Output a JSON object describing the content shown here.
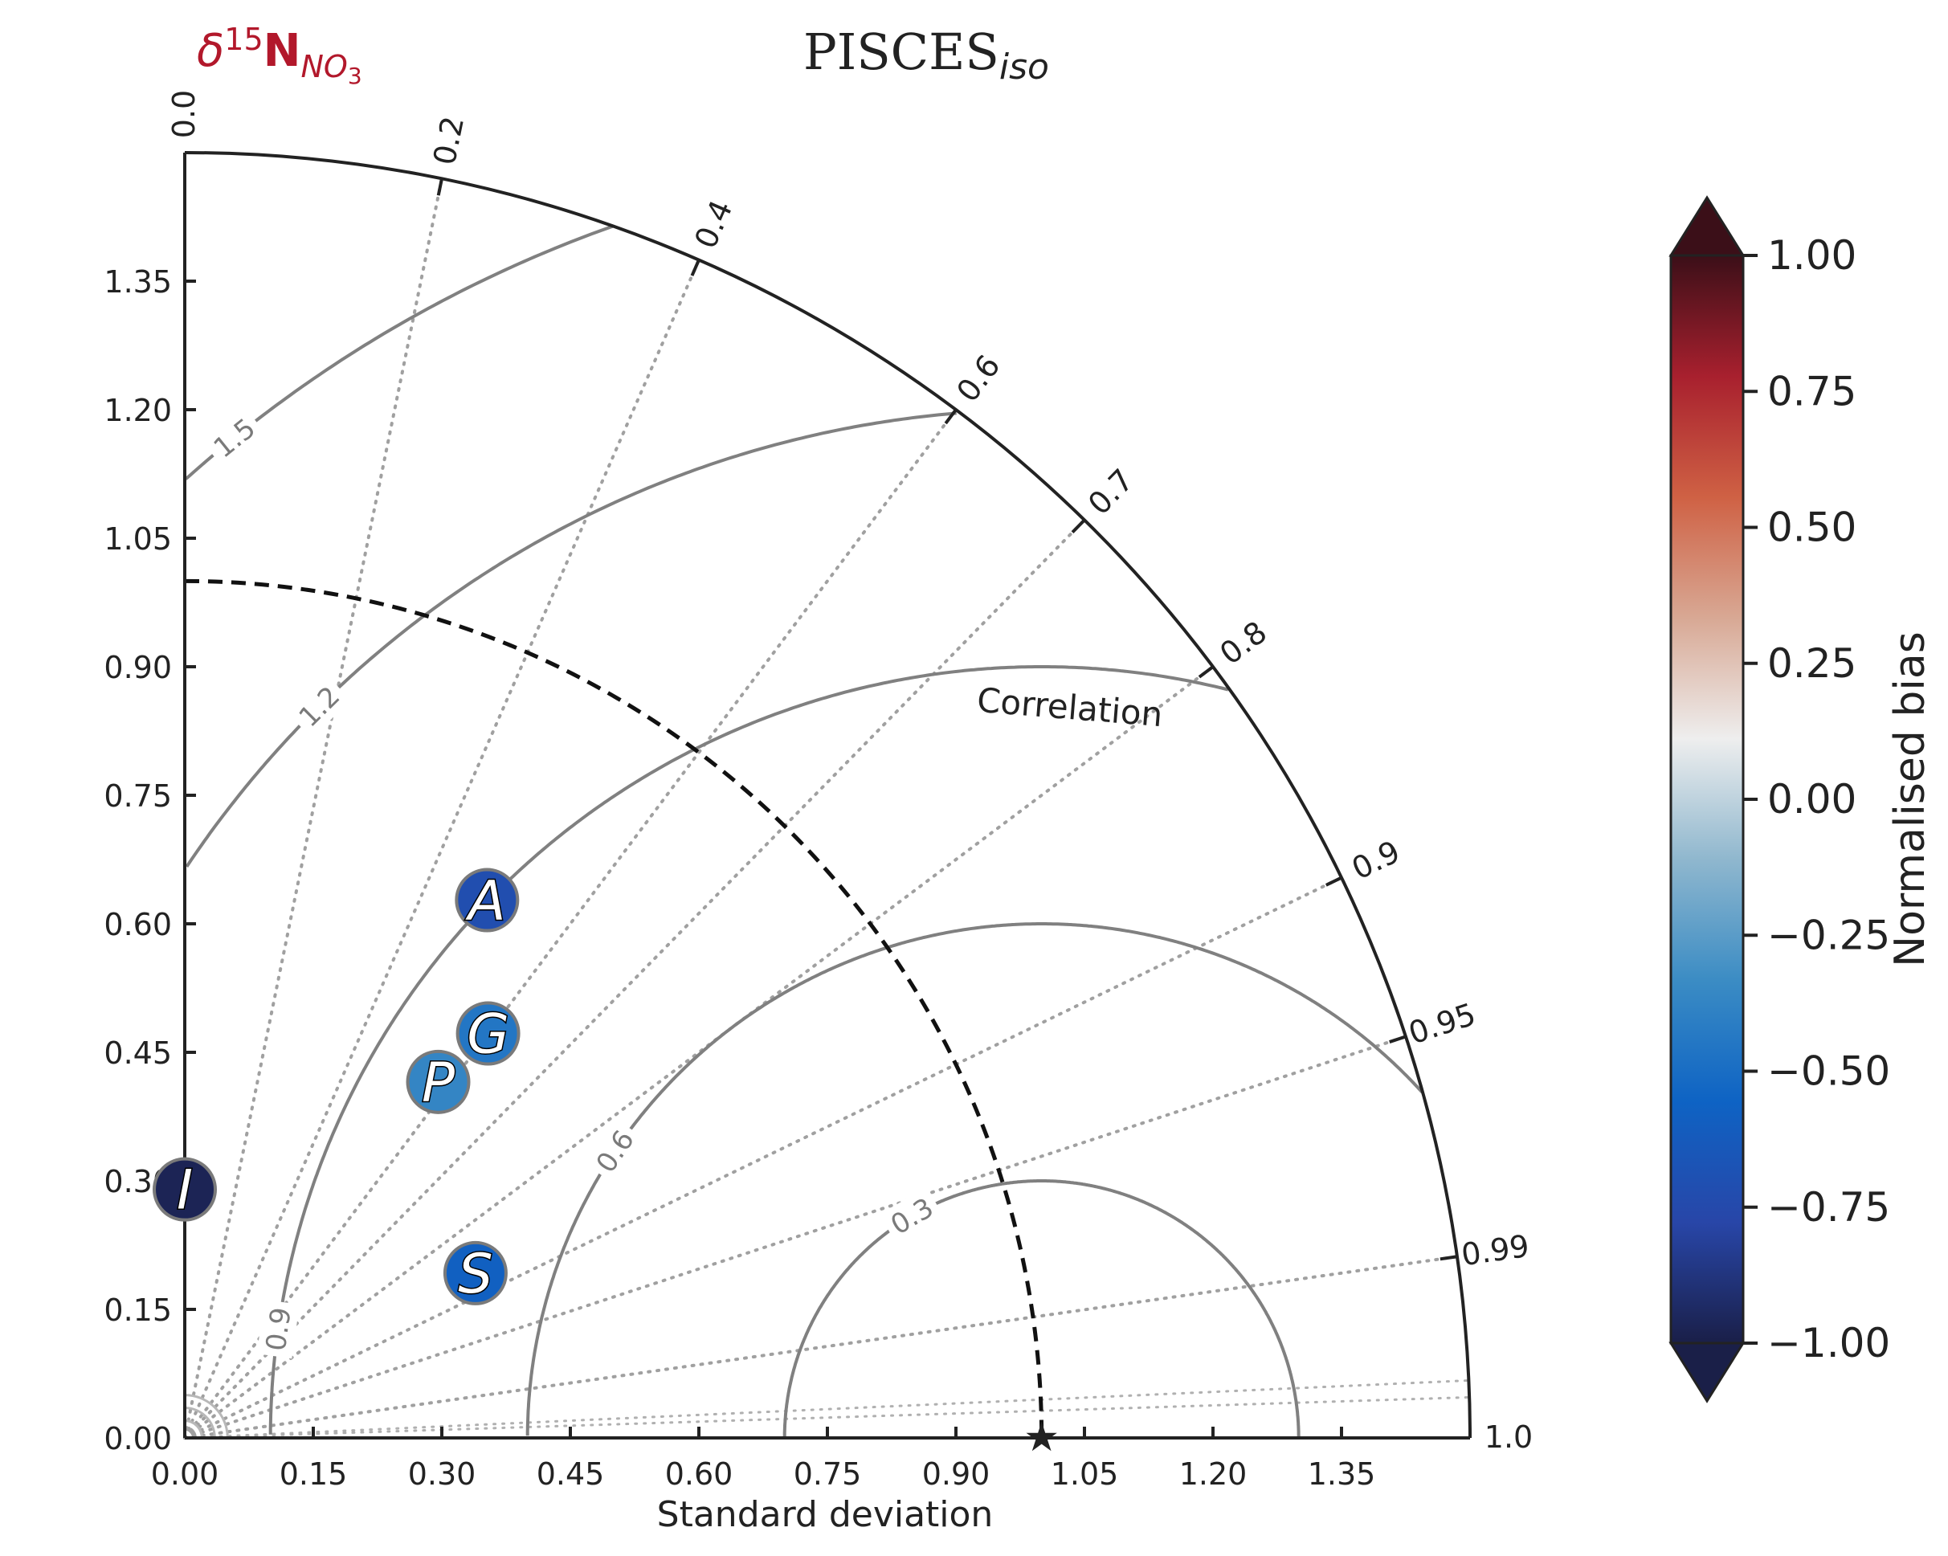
{
  "chart_data": {
    "type": "scatter",
    "subtype": "taylor-diagram",
    "title": "PISCES",
    "title_subscript": "iso",
    "variable_label": {
      "delta": "δ",
      "superscript": "15",
      "main": "N",
      "subscript": "NO",
      "sub_subscript": "3",
      "color": "#b2182b"
    },
    "xlabel": "Standard deviation",
    "correlation_label": "Correlation",
    "std_range": [
      0,
      1.5
    ],
    "std_ticks": [
      "0.00",
      "0.15",
      "0.30",
      "0.45",
      "0.60",
      "0.75",
      "0.90",
      "1.05",
      "1.20",
      "1.35"
    ],
    "correlation_ticks": [
      "0.0",
      "0.2",
      "0.4",
      "0.6",
      "0.7",
      "0.8",
      "0.9",
      "0.95",
      "0.99",
      "1.0"
    ],
    "rms_contours": [
      0.3,
      0.6,
      0.9,
      1.2,
      1.5
    ],
    "rms_labels": [
      "0.3",
      "0.6",
      "0.9",
      "1.2",
      "1.5"
    ],
    "reference": {
      "std": 1.0,
      "correlation": 1.0,
      "marker": "★"
    },
    "points": [
      {
        "label": "A",
        "std": 0.72,
        "correlation": 0.49,
        "bias": -0.72
      },
      {
        "label": "G",
        "std": 0.59,
        "correlation": 0.6,
        "bias": -0.45
      },
      {
        "label": "P",
        "std": 0.51,
        "correlation": 0.58,
        "bias": -0.37
      },
      {
        "label": "I",
        "std": 0.29,
        "correlation": 0.0,
        "bias": -0.97
      },
      {
        "label": "S",
        "std": 0.39,
        "correlation": 0.87,
        "bias": -0.58
      }
    ],
    "colorbar": {
      "label": "Normalised bias",
      "range": [
        -1.0,
        1.0
      ],
      "ticks": [
        "1.00",
        "0.75",
        "0.50",
        "0.25",
        "0.00",
        "−0.25",
        "−0.50",
        "−0.75",
        "−1.00"
      ],
      "colors": [
        "#1a1f48",
        "#2846a8",
        "#0e63c4",
        "#3b8cc4",
        "#8fb7ce",
        "#eeeeee",
        "#d8a894",
        "#cf6144",
        "#a8202e",
        "#3b0f18"
      ]
    },
    "grid": true
  }
}
